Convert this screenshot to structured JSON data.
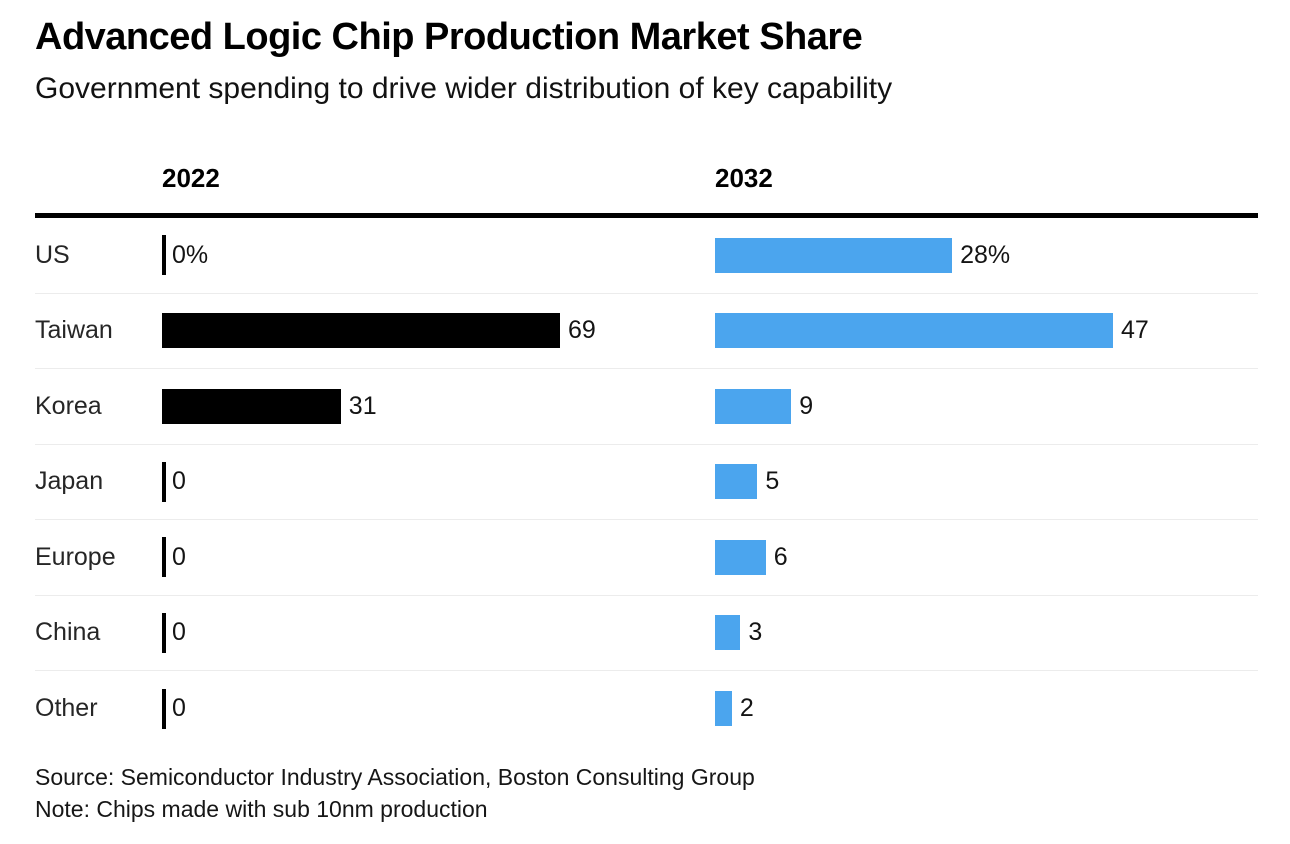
{
  "chart_data": {
    "type": "bar",
    "orientation": "horizontal",
    "title": "Advanced Logic Chip Production Market Share",
    "subtitle": "Government spending to drive wider distribution of key capability",
    "categories": [
      "US",
      "Taiwan",
      "Korea",
      "Japan",
      "Europe",
      "China",
      "Other"
    ],
    "series": [
      {
        "name": "2022",
        "color": "#000000",
        "values": [
          0,
          69,
          31,
          0,
          0,
          0,
          0
        ],
        "labels": [
          "0%",
          "69",
          "31",
          "0",
          "0",
          "0",
          "0"
        ],
        "xlim": [
          0,
          69
        ]
      },
      {
        "name": "2032",
        "color": "#4BA5EE",
        "values": [
          28,
          47,
          9,
          5,
          6,
          3,
          2
        ],
        "labels": [
          "28%",
          "47",
          "9",
          "5",
          "6",
          "3",
          "2"
        ],
        "xlim": [
          0,
          47
        ]
      }
    ],
    "value_unit": "%",
    "layout": {
      "grid": "off",
      "legend": "column-headers",
      "normalized_per_column": true,
      "zero_shown_as_tick": true
    },
    "source": "Source: Semiconductor Industry Association, Boston Consulting Group",
    "note": "Note: Chips made with sub 10nm production"
  }
}
